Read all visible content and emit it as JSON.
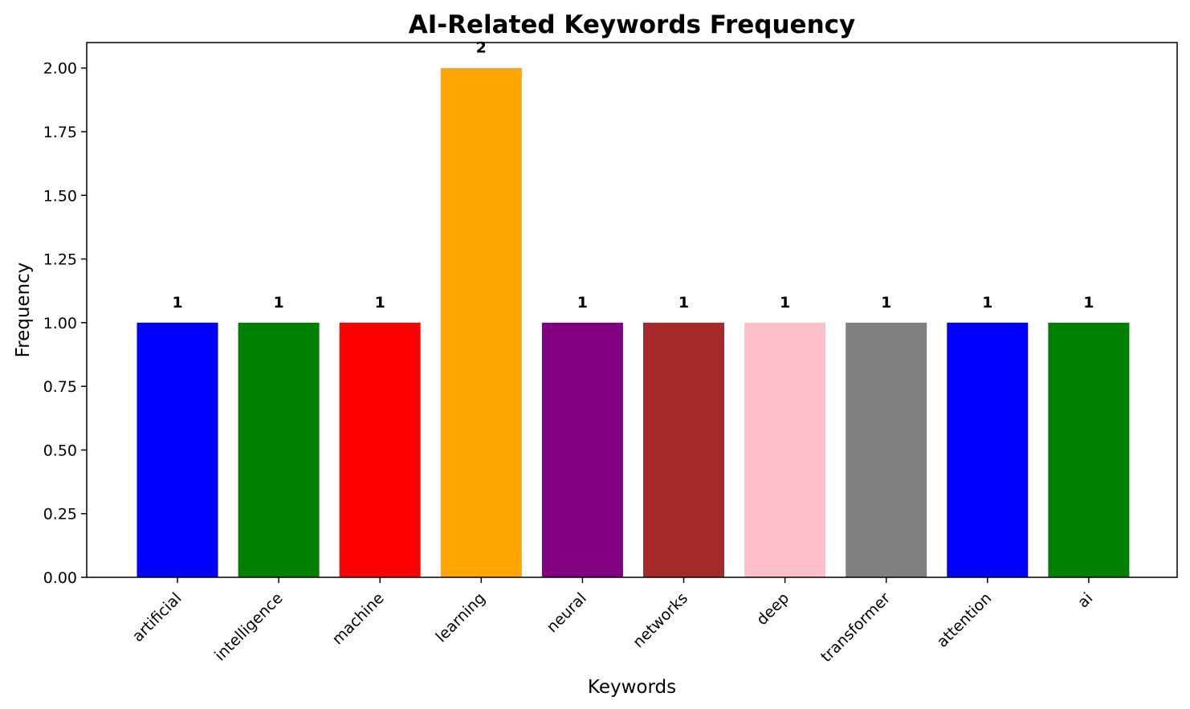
{
  "chart_data": {
    "type": "bar",
    "title": "AI-Related Keywords Frequency",
    "xlabel": "Keywords",
    "ylabel": "Frequency",
    "categories": [
      "artificial",
      "intelligence",
      "machine",
      "learning",
      "neural",
      "networks",
      "deep",
      "transformer",
      "attention",
      "ai"
    ],
    "values": [
      1,
      1,
      1,
      2,
      1,
      1,
      1,
      1,
      1,
      1
    ],
    "data_labels": [
      "1",
      "1",
      "1",
      "2",
      "1",
      "1",
      "1",
      "1",
      "1",
      "1"
    ],
    "colors": [
      "#0000ff",
      "#008000",
      "#ff0000",
      "#ffa500",
      "#800080",
      "#a52a2a",
      "#ffc0cb",
      "#808080",
      "#0000ff",
      "#008000"
    ],
    "ylim": [
      0,
      2.1
    ],
    "yticks": [
      "0.00",
      "0.25",
      "0.50",
      "0.75",
      "1.00",
      "1.25",
      "1.50",
      "1.75",
      "2.00"
    ],
    "grid": false,
    "legend": "none"
  }
}
